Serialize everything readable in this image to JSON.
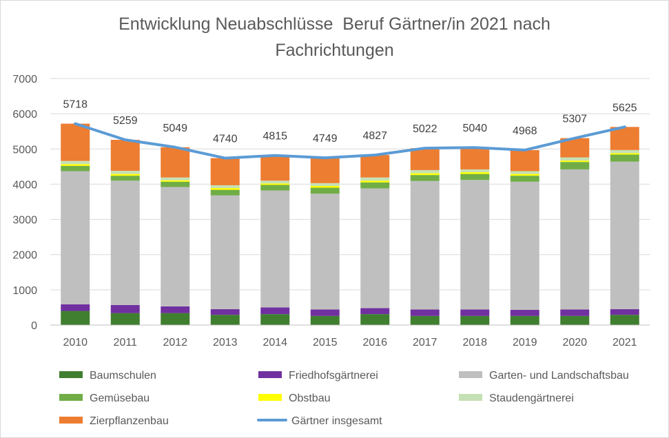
{
  "title": {
    "line1": "Entwicklung Neuabschlüsse  Beruf Gärtner/in 2021 nach",
    "line2": "Fachrichtungen"
  },
  "chart_data": {
    "type": "bar",
    "stacked": true,
    "title": "Entwicklung Neuabschlüsse  Beruf Gärtner/in 2021 nach Fachrichtungen",
    "categories": [
      "2010",
      "2011",
      "2012",
      "2013",
      "2014",
      "2015",
      "2016",
      "2017",
      "2018",
      "2019",
      "2020",
      "2021"
    ],
    "ylim": [
      0,
      7000
    ],
    "yticks": [
      0,
      1000,
      2000,
      3000,
      4000,
      5000,
      6000,
      7000
    ],
    "grid": true,
    "legend_position": "bottom",
    "series": [
      {
        "name": "Baumschulen",
        "color": "#3f7f2f",
        "values": [
          400,
          340,
          340,
          290,
          310,
          260,
          310,
          260,
          260,
          260,
          260,
          290
        ]
      },
      {
        "name": "Friedhofsgärtnerei",
        "color": "#7030a0",
        "values": [
          190,
          230,
          190,
          160,
          190,
          180,
          170,
          180,
          180,
          170,
          180,
          160
        ]
      },
      {
        "name": "Garten- und Landschaftsbau",
        "color": "#bfbfbf",
        "values": [
          3780,
          3530,
          3390,
          3230,
          3320,
          3290,
          3400,
          3650,
          3680,
          3640,
          3980,
          4190
        ]
      },
      {
        "name": "Gemüsebau",
        "color": "#70ad47",
        "values": [
          150,
          140,
          150,
          160,
          160,
          170,
          170,
          170,
          170,
          170,
          210,
          200
        ]
      },
      {
        "name": "Obstbau",
        "color": "#ffff00",
        "values": [
          50,
          50,
          40,
          50,
          40,
          50,
          50,
          50,
          50,
          50,
          40,
          40
        ]
      },
      {
        "name": "Staudengärtnerei",
        "color": "#c5e0b4",
        "values": [
          90,
          90,
          80,
          80,
          80,
          80,
          90,
          90,
          80,
          80,
          90,
          90
        ]
      },
      {
        "name": "Zierpflanzenbau",
        "color": "#ed7d31",
        "values": [
          1058,
          879,
          859,
          770,
          715,
          719,
          637,
          622,
          620,
          598,
          547,
          655
        ]
      }
    ],
    "line_series": {
      "name": "Gärtner insgesamt",
      "color": "#5b9bd5",
      "values": [
        5718,
        5259,
        5049,
        4740,
        4815,
        4749,
        4827,
        5022,
        5040,
        4968,
        5307,
        5625
      ]
    }
  }
}
